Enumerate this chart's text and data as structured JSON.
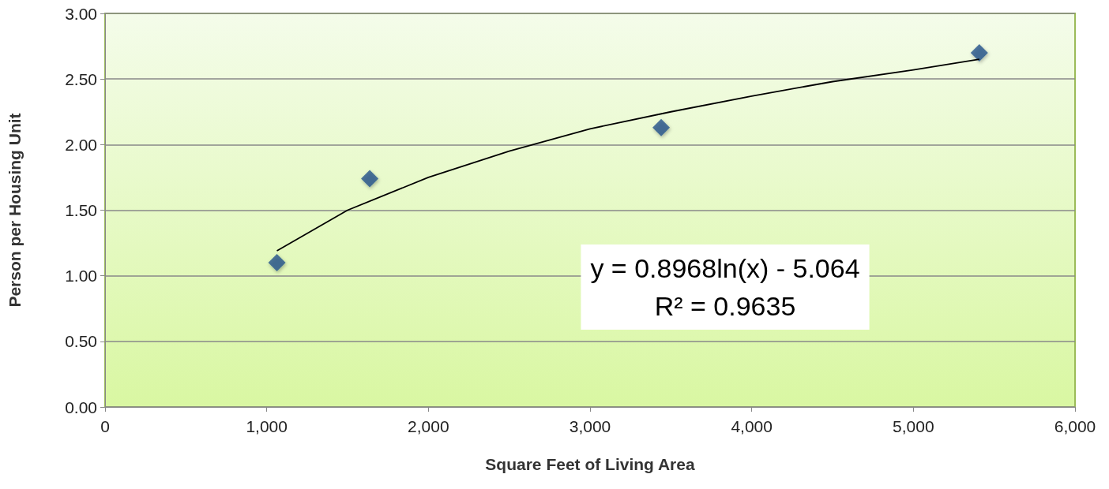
{
  "chart_data": {
    "type": "scatter",
    "xlabel": "Square Feet of Living Area",
    "ylabel": "Person per Housing Unit",
    "xlim": [
      0,
      6000
    ],
    "xticks": [
      {
        "value": 0,
        "label": "0"
      },
      {
        "value": 1000,
        "label": "1,000"
      },
      {
        "value": 2000,
        "label": "2,000"
      },
      {
        "value": 3000,
        "label": "3,000"
      },
      {
        "value": 4000,
        "label": "4,000"
      },
      {
        "value": 5000,
        "label": "5,000"
      },
      {
        "value": 6000,
        "label": "6,000"
      }
    ],
    "ylim": [
      0,
      3
    ],
    "yticks": [
      {
        "value": 0,
        "label": "0.00"
      },
      {
        "value": 0.5,
        "label": "0.50"
      },
      {
        "value": 1,
        "label": "1.00"
      },
      {
        "value": 1.5,
        "label": "1.50"
      },
      {
        "value": 2,
        "label": "2.00"
      },
      {
        "value": 2.5,
        "label": "2.50"
      },
      {
        "value": 3,
        "label": "3.00"
      }
    ],
    "grid": "y",
    "series": [
      {
        "color": "#24548c",
        "marker": "diamond",
        "x": [
          1063,
          1637,
          3440,
          5408
        ],
        "values": [
          1.1,
          1.74,
          2.13,
          2.7
        ]
      },
      {
        "type": "line",
        "color": "#000000",
        "marker": "none",
        "x": [
          1063,
          1500,
          2000,
          2500,
          3000,
          3500,
          4000,
          4500,
          5000,
          5408
        ],
        "values": [
          1.19,
          1.5,
          1.75,
          1.95,
          2.12,
          2.25,
          2.37,
          2.48,
          2.57,
          2.65
        ]
      }
    ],
    "annotations": [
      "y = 0.8968ln(x) - 5.064\nR² = 0.9635"
    ]
  }
}
